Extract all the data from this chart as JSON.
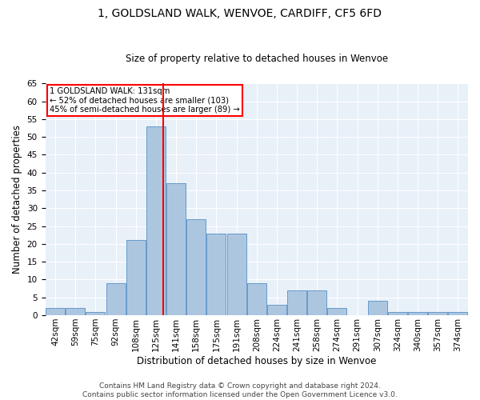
{
  "title": "1, GOLDSLAND WALK, WENVOE, CARDIFF, CF5 6FD",
  "subtitle": "Size of property relative to detached houses in Wenvoe",
  "xlabel": "Distribution of detached houses by size in Wenvoe",
  "ylabel": "Number of detached properties",
  "bar_color": "#adc6e0",
  "bar_edge_color": "#6699cc",
  "vline_color": "red",
  "vline_x": 5,
  "categories": [
    "42sqm",
    "59sqm",
    "75sqm",
    "92sqm",
    "108sqm",
    "125sqm",
    "141sqm",
    "158sqm",
    "175sqm",
    "191sqm",
    "208sqm",
    "224sqm",
    "241sqm",
    "258sqm",
    "274sqm",
    "291sqm",
    "307sqm",
    "324sqm",
    "340sqm",
    "357sqm",
    "374sqm"
  ],
  "values": [
    2,
    2,
    1,
    9,
    21,
    53,
    37,
    27,
    23,
    23,
    9,
    3,
    7,
    7,
    2,
    0,
    4,
    1,
    1,
    1,
    1
  ],
  "ylim": [
    0,
    65
  ],
  "yticks": [
    0,
    5,
    10,
    15,
    20,
    25,
    30,
    35,
    40,
    45,
    50,
    55,
    60,
    65
  ],
  "annotation_title": "1 GOLDSLAND WALK: 131sqm",
  "annotation_line1": "← 52% of detached houses are smaller (103)",
  "annotation_line2": "45% of semi-detached houses are larger (89) →",
  "annotation_box_color": "white",
  "annotation_box_edge": "red",
  "footer1": "Contains HM Land Registry data © Crown copyright and database right 2024.",
  "footer2": "Contains public sector information licensed under the Open Government Licence v3.0.",
  "bg_color": "#e8f0f8",
  "grid_color": "white",
  "title_fontsize": 10,
  "subtitle_fontsize": 8.5,
  "axis_label_fontsize": 8.5,
  "tick_fontsize": 7.5,
  "footer_fontsize": 6.5
}
